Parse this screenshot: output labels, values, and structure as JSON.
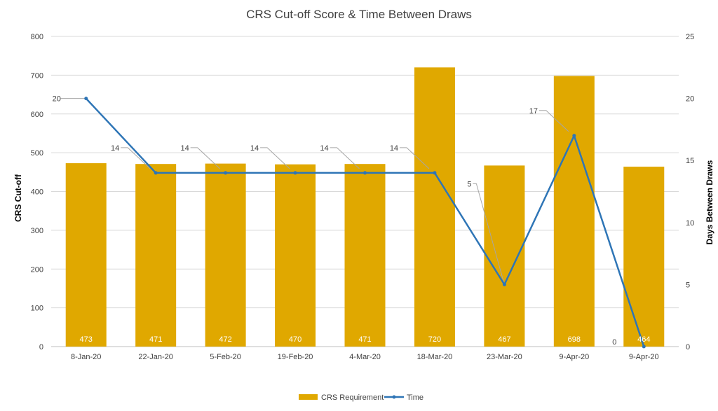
{
  "chart_data": {
    "type": "bar",
    "title": "CRS Cut-off Score & Time Between Draws",
    "xlabel": "",
    "ylabel": "CRS Cut-off",
    "y2label": "Days Between Draws",
    "categories": [
      "8-Jan-20",
      "22-Jan-20",
      "5-Feb-20",
      "19-Feb-20",
      "4-Mar-20",
      "18-Mar-20",
      "23-Mar-20",
      "9-Apr-20",
      "9-Apr-20"
    ],
    "ylim": [
      0,
      800
    ],
    "yticks": [
      0,
      100,
      200,
      300,
      400,
      500,
      600,
      700,
      800
    ],
    "y2lim": [
      0,
      25
    ],
    "y2ticks": [
      0,
      5,
      10,
      15,
      20,
      25
    ],
    "grid": true,
    "legend_position": "bottom",
    "series": [
      {
        "name": "CRS Requirement",
        "type": "bar",
        "axis": "left",
        "color": "#E0A800",
        "values": [
          473,
          471,
          472,
          470,
          471,
          720,
          467,
          698,
          464
        ],
        "labels": [
          "473",
          "471",
          "472",
          "470",
          "471",
          "720",
          "467",
          "698",
          "464"
        ]
      },
      {
        "name": "Time",
        "type": "line",
        "axis": "right",
        "color": "#2E75B6",
        "values": [
          20,
          14,
          14,
          14,
          14,
          14,
          5,
          17,
          0
        ],
        "labels": [
          "20",
          "14",
          "14",
          "14",
          "14",
          "14",
          "5",
          "17",
          "0"
        ]
      }
    ]
  }
}
